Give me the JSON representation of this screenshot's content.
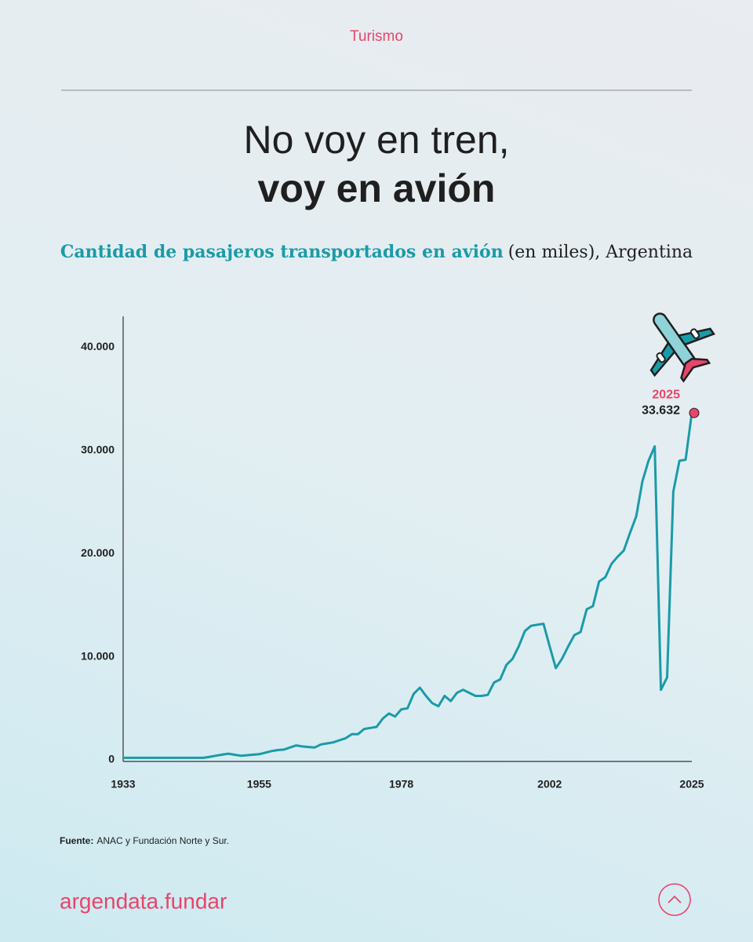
{
  "header": {
    "section": "Turismo"
  },
  "title": {
    "line1": "No voy en tren,",
    "line2": "voy en avión"
  },
  "subtitle": {
    "bold": "Cantidad de pasajeros transportados en avión",
    "rest": "(en miles), Argentina"
  },
  "chart_data": {
    "type": "line",
    "color": "#1a9ba8",
    "x": [
      1933,
      1934,
      1935,
      1936,
      1937,
      1938,
      1939,
      1940,
      1941,
      1942,
      1943,
      1944,
      1945,
      1946,
      1947,
      1948,
      1949,
      1950,
      1951,
      1952,
      1953,
      1954,
      1955,
      1956,
      1957,
      1958,
      1959,
      1960,
      1961,
      1962,
      1963,
      1964,
      1965,
      1966,
      1967,
      1968,
      1969,
      1970,
      1971,
      1972,
      1973,
      1974,
      1975,
      1976,
      1977,
      1978,
      1979,
      1980,
      1981,
      1982,
      1983,
      1984,
      1985,
      1986,
      1987,
      1988,
      1989,
      1990,
      1991,
      1992,
      1993,
      1994,
      1995,
      1996,
      1997,
      1998,
      1999,
      2000,
      2001,
      2002,
      2003,
      2004,
      2005,
      2006,
      2007,
      2008,
      2009,
      2010,
      2011,
      2012,
      2013,
      2014,
      2015,
      2016,
      2017,
      2018,
      2019,
      2020,
      2021,
      2022,
      2023,
      2024,
      2025
    ],
    "values": [
      200,
      200,
      200,
      200,
      200,
      200,
      200,
      200,
      200,
      200,
      200,
      200,
      200,
      200,
      300,
      400,
      500,
      600,
      500,
      400,
      450,
      500,
      550,
      700,
      850,
      950,
      1000,
      1200,
      1400,
      1300,
      1250,
      1200,
      1500,
      1600,
      1700,
      1900,
      2100,
      2500,
      2500,
      3000,
      3100,
      3200,
      4000,
      4500,
      4200,
      4900,
      5000,
      6400,
      7000,
      6200,
      5500,
      5200,
      6200,
      5700,
      6500,
      6800,
      6500,
      6200,
      6200,
      6300,
      7500,
      7800,
      9200,
      9800,
      11000,
      12500,
      13000,
      13100,
      13200,
      11000,
      8900,
      9800,
      11000,
      12100,
      12400,
      14600,
      14900,
      17300,
      17700,
      19000,
      19700,
      20300,
      22000,
      23600,
      27000,
      29000,
      30400,
      6800,
      8000,
      26000,
      29000,
      29100,
      33632
    ],
    "xlim": [
      1933,
      2025
    ],
    "ylim": [
      0,
      43000
    ],
    "xticks": [
      1933,
      1955,
      1978,
      2002,
      2025
    ],
    "yticks": [
      0,
      {
        "value": 10000,
        "label": "10.000"
      },
      {
        "value": 20000,
        "label": "20.000"
      },
      {
        "value": 30000,
        "label": "30.000"
      },
      {
        "value": 40000,
        "label": "40.000"
      }
    ],
    "annotation": {
      "year": 2025,
      "value": 33632,
      "value_label": "33.632"
    }
  },
  "source": {
    "label": "Fuente:",
    "text": "ANAC y Fundación Norte y Sur."
  },
  "footer": {
    "brand": "argendata.fundar"
  }
}
